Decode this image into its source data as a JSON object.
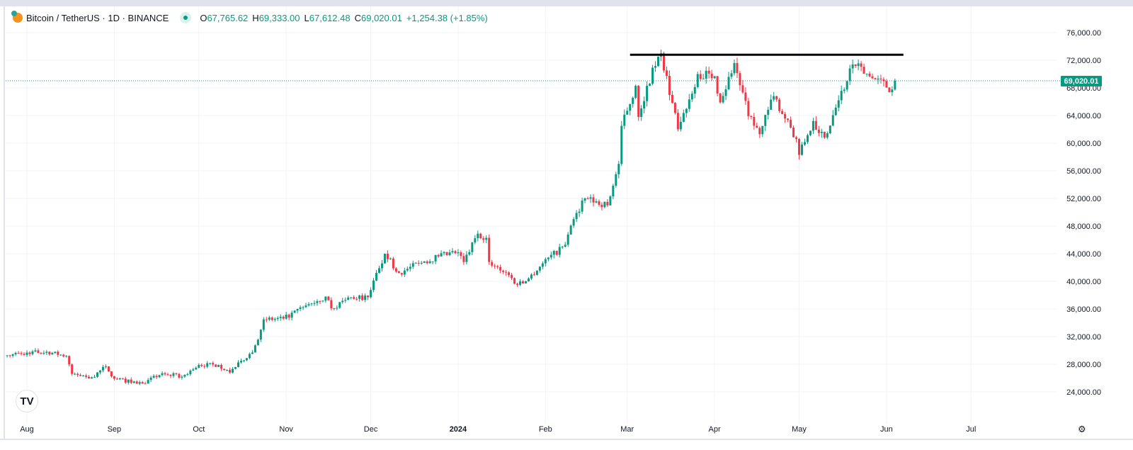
{
  "header": {
    "title": "Bitcoin / TetherUS · 1D · BINANCE",
    "open_label": "O",
    "open": "67,765.62",
    "high_label": "H",
    "high": "69,333.00",
    "low_label": "L",
    "low": "67,612.48",
    "close_label": "C",
    "close": "69,020.01",
    "change": "+1,254.38 (+1.85%)"
  },
  "logo": "TV",
  "colors": {
    "up": "#089981",
    "down": "#f23645",
    "grid": "#f0f3fa",
    "text": "#131722",
    "trendline": "#000000"
  },
  "chart_data": {
    "type": "candlestick",
    "title": "Bitcoin / TetherUS · 1D · BINANCE",
    "ylim": [
      22000,
      78000
    ],
    "y_ticks": [
      24000,
      28000,
      32000,
      36000,
      40000,
      44000,
      48000,
      52000,
      56000,
      60000,
      64000,
      68000,
      72000,
      76000
    ],
    "y_tick_labels": [
      "24,000.00",
      "28,000.00",
      "32,000.00",
      "36,000.00",
      "40,000.00",
      "44,000.00",
      "48,000.00",
      "52,000.00",
      "56,000.00",
      "60,000.00",
      "64,000.00",
      "68,000.00",
      "72,000.00",
      "76,000.00"
    ],
    "x_range": [
      "2023-07-25",
      "2024-07-31"
    ],
    "x_ticks": [
      {
        "date": "2023-08-01",
        "label": "Aug"
      },
      {
        "date": "2023-09-01",
        "label": "Sep"
      },
      {
        "date": "2023-10-01",
        "label": "Oct"
      },
      {
        "date": "2023-11-01",
        "label": "Nov"
      },
      {
        "date": "2023-12-01",
        "label": "Dec"
      },
      {
        "date": "2024-01-01",
        "label": "2024"
      },
      {
        "date": "2024-02-01",
        "label": "Feb"
      },
      {
        "date": "2024-03-01",
        "label": "Mar"
      },
      {
        "date": "2024-04-01",
        "label": "Apr"
      },
      {
        "date": "2024-05-01",
        "label": "May"
      },
      {
        "date": "2024-06-01",
        "label": "Jun"
      },
      {
        "date": "2024-07-01",
        "label": "Jul"
      }
    ],
    "last_price": 69020.01,
    "last_price_label": "69,020.01",
    "last_candle": {
      "date": "2024-06-04",
      "o": 67765.62,
      "h": 69333.0,
      "l": 67612.48,
      "c": 69020.01
    },
    "approx_close_keypoints": [
      [
        "2023-07-25",
        29300
      ],
      [
        "2023-08-01",
        29700
      ],
      [
        "2023-08-08",
        29800
      ],
      [
        "2023-08-15",
        29200
      ],
      [
        "2023-08-17",
        26600
      ],
      [
        "2023-08-24",
        26100
      ],
      [
        "2023-08-29",
        27700
      ],
      [
        "2023-09-01",
        25900
      ],
      [
        "2023-09-11",
        25200
      ],
      [
        "2023-09-18",
        26700
      ],
      [
        "2023-09-25",
        26200
      ],
      [
        "2023-10-01",
        27900
      ],
      [
        "2023-10-08",
        27900
      ],
      [
        "2023-10-12",
        26800
      ],
      [
        "2023-10-16",
        28500
      ],
      [
        "2023-10-20",
        29700
      ],
      [
        "2023-10-23",
        33000
      ],
      [
        "2023-10-24",
        34500
      ],
      [
        "2023-10-31",
        34600
      ],
      [
        "2023-11-09",
        36700
      ],
      [
        "2023-11-15",
        37800
      ],
      [
        "2023-11-17",
        36100
      ],
      [
        "2023-11-24",
        37700
      ],
      [
        "2023-11-30",
        37700
      ],
      [
        "2023-12-04",
        41900
      ],
      [
        "2023-12-06",
        44000
      ],
      [
        "2023-12-11",
        41200
      ],
      [
        "2023-12-18",
        42600
      ],
      [
        "2023-12-25",
        43600
      ],
      [
        "2024-01-01",
        44200
      ],
      [
        "2024-01-03",
        42800
      ],
      [
        "2024-01-08",
        46900
      ],
      [
        "2024-01-11",
        46300
      ],
      [
        "2024-01-12",
        42800
      ],
      [
        "2024-01-18",
        41300
      ],
      [
        "2024-01-22",
        39500
      ],
      [
        "2024-01-25",
        40000
      ],
      [
        "2024-01-31",
        42600
      ],
      [
        "2024-02-08",
        45300
      ],
      [
        "2024-02-12",
        49900
      ],
      [
        "2024-02-15",
        52000
      ],
      [
        "2024-02-23",
        51000
      ],
      [
        "2024-02-27",
        57000
      ],
      [
        "2024-02-28",
        62500
      ],
      [
        "2024-03-04",
        68300
      ],
      [
        "2024-03-05",
        63800
      ],
      [
        "2024-03-08",
        68300
      ],
      [
        "2024-03-13",
        73000
      ],
      [
        "2024-03-19",
        62000
      ],
      [
        "2024-03-26",
        70000
      ],
      [
        "2024-04-01",
        69700
      ],
      [
        "2024-04-03",
        65900
      ],
      [
        "2024-04-08",
        71600
      ],
      [
        "2024-04-13",
        63900
      ],
      [
        "2024-04-17",
        61300
      ],
      [
        "2024-04-22",
        66800
      ],
      [
        "2024-04-30",
        60600
      ],
      [
        "2024-05-01",
        58300
      ],
      [
        "2024-05-06",
        63200
      ],
      [
        "2024-05-10",
        60800
      ],
      [
        "2024-05-15",
        66200
      ],
      [
        "2024-05-20",
        71400
      ],
      [
        "2024-05-27",
        69400
      ],
      [
        "2024-06-03",
        67765.62
      ]
    ],
    "annotations": [
      {
        "type": "horizontal-trendline",
        "from": "2024-03-02",
        "to": "2024-06-07",
        "price": 72800
      }
    ],
    "grid": true
  }
}
